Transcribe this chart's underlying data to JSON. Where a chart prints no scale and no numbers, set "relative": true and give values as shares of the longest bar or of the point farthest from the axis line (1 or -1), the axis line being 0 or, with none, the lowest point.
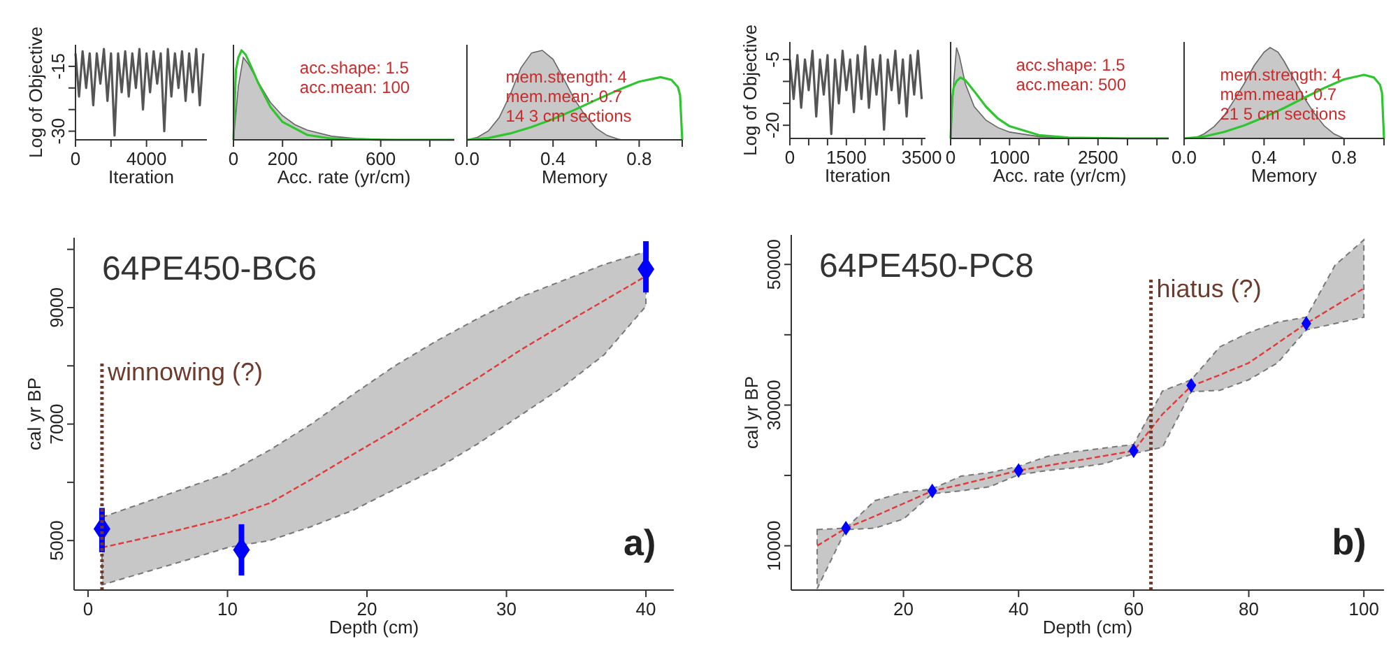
{
  "chart_data": [
    {
      "type": "line",
      "xlabel": "Iteration",
      "ylabel": "Log of Objective",
      "xlim": [
        0,
        7400
      ],
      "ylim": [
        -32,
        -10
      ],
      "xticks": [
        0,
        {
          "value": 2000,
          "label": null
        },
        4000,
        {
          "value": 6000,
          "label": null
        }
      ],
      "yticks": [
        -15,
        {
          "value": -20,
          "label": null
        },
        {
          "value": -25,
          "label": null
        },
        -30
      ],
      "series": [
        {
          "color": "#555555",
          "x": [
            0,
            200,
            400,
            600,
            800,
            1000,
            1200,
            1400,
            1600,
            1800,
            2000,
            2200,
            2400,
            2600,
            2800,
            3000,
            3200,
            3400,
            3600,
            3800,
            4000,
            4200,
            4400,
            4600,
            4800,
            5000,
            5200,
            5400,
            5600,
            5800,
            6000,
            6200,
            6400,
            6600,
            6800,
            7000,
            7200
          ],
          "values": [
            -12,
            -22,
            -11.5,
            -20,
            -12,
            -24,
            -12,
            -19,
            -11,
            -23,
            -12,
            -31,
            -12,
            -21,
            -11.5,
            -22,
            -12,
            -20,
            -11,
            -25,
            -12,
            -21,
            -11.5,
            -19,
            -12,
            -30,
            -11,
            -22,
            -12,
            -20,
            -11.5,
            -23,
            -12,
            -21,
            -11,
            -24,
            -12
          ]
        }
      ]
    },
    {
      "type": "area",
      "relative": true,
      "xlabel": "Acc. rate (yr/cm)",
      "xlim": [
        0,
        900
      ],
      "xticks": [
        0,
        200,
        {
          "value": 400,
          "label": null
        },
        600,
        {
          "value": 800,
          "label": null
        }
      ],
      "annotations": [
        "acc.shape:  1.5",
        "acc.mean:  100"
      ],
      "series": [
        {
          "color": "#c8c8c8",
          "x": [
            0,
            20,
            40,
            60,
            100,
            150,
            200,
            250,
            300,
            400,
            500,
            600,
            700
          ],
          "values": [
            0,
            0.6,
            0.92,
            0.85,
            0.65,
            0.42,
            0.27,
            0.17,
            0.11,
            0.04,
            0.015,
            0.005,
            0
          ]
        },
        {
          "type": "line",
          "color": "#2ec52e",
          "x": [
            0,
            10,
            20,
            33,
            50,
            75,
            100,
            150,
            200,
            300,
            400,
            600,
            900
          ],
          "values": [
            0,
            0.78,
            0.92,
            1,
            0.95,
            0.8,
            0.64,
            0.37,
            0.2,
            0.055,
            0.014,
            0.001,
            0
          ]
        }
      ]
    },
    {
      "type": "area",
      "relative": true,
      "xlabel": "Memory",
      "xlim": [
        0,
        1
      ],
      "xticks": [
        {
          "value": 0,
          "label": "0.0"
        },
        {
          "value": 0.2,
          "label": null
        },
        0.4,
        {
          "value": 0.6,
          "label": null
        },
        0.8,
        {
          "value": 1,
          "label": null
        }
      ],
      "annotations": [
        "mem.strength: 4",
        "mem.mean: 0.7",
        "14 3 cm sections"
      ],
      "series": [
        {
          "color": "#c8c8c8",
          "x": [
            0,
            0.05,
            0.1,
            0.15,
            0.2,
            0.25,
            0.3,
            0.35,
            0.4,
            0.45,
            0.5,
            0.55,
            0.6,
            0.65,
            0.7,
            0.72
          ],
          "values": [
            0,
            0.03,
            0.1,
            0.25,
            0.5,
            0.8,
            0.97,
            1,
            0.9,
            0.68,
            0.45,
            0.27,
            0.13,
            0.05,
            0.01,
            0
          ]
        },
        {
          "type": "line",
          "color": "#2ec52e",
          "x": [
            0,
            0.1,
            0.2,
            0.3,
            0.4,
            0.5,
            0.6,
            0.7,
            0.8,
            0.9,
            0.95,
            0.98,
            0.99,
            1
          ],
          "values": [
            0,
            0.021,
            0.071,
            0.143,
            0.232,
            0.335,
            0.446,
            0.554,
            0.65,
            0.7,
            0.67,
            0.59,
            0.5,
            0
          ]
        }
      ]
    },
    {
      "type": "line",
      "title": "64PE450-BC6",
      "xlabel": "Depth (cm)",
      "ylabel": "cal yr BP",
      "xlim": [
        -1,
        42
      ],
      "ylim": [
        4150,
        10200
      ],
      "xticks": [
        0,
        10,
        20,
        30,
        40
      ],
      "yticks": [
        5000,
        {
          "value": 6000,
          "label": null
        },
        7000,
        {
          "value": 8000,
          "label": null
        },
        9000,
        {
          "value": 10000,
          "label": null
        }
      ],
      "annotations": [
        "a)"
      ],
      "ref_lines": [
        {
          "axis": "x",
          "value": 1,
          "label": "winnowing (?)",
          "color": "#6e3a2c",
          "line_style": "dotted"
        }
      ],
      "series": [
        {
          "color": "#e03a3a",
          "line_style": "dashed",
          "x": [
            1,
            4,
            7,
            10,
            13,
            16,
            19,
            22,
            25,
            28,
            31,
            34,
            37,
            40
          ],
          "values": [
            4880,
            5040,
            5210,
            5390,
            5640,
            6050,
            6480,
            6900,
            7350,
            7800,
            8270,
            8700,
            9120,
            9540
          ],
          "lower": [
            4240,
            4450,
            4660,
            4880,
            5000,
            5240,
            5520,
            5880,
            6235,
            6670,
            7150,
            7630,
            8190,
            9025
          ],
          "upper": [
            5400,
            5650,
            5900,
            6155,
            6550,
            7000,
            7510,
            8000,
            8430,
            8820,
            9180,
            9460,
            9740,
            9960
          ]
        },
        {
          "type": "scatter",
          "color": "#0000ff",
          "marker": "diamond",
          "x": [
            1,
            11,
            40
          ],
          "values": [
            5200,
            4840,
            9660
          ],
          "errors": [
            [
              4800,
              5560
            ],
            [
              4400,
              5280
            ],
            [
              9260,
              10140
            ]
          ]
        }
      ]
    },
    {
      "type": "line",
      "xlabel": "Iteration",
      "ylabel": "Log of Objective",
      "xlim": [
        0,
        3600
      ],
      "ylim": [
        -23,
        -1
      ],
      "xticks": [
        0,
        {
          "value": 500,
          "label": null
        },
        {
          "value": 1000,
          "label": null
        },
        1500,
        {
          "value": 2000,
          "label": null
        },
        {
          "value": 2500,
          "label": null
        },
        {
          "value": 3000,
          "label": null
        },
        3500
      ],
      "yticks": [
        -5,
        {
          "value": -10,
          "label": null
        },
        {
          "value": -15,
          "label": null
        },
        -20
      ],
      "series": [
        {
          "color": "#555555",
          "x": [
            0,
            100,
            200,
            300,
            400,
            500,
            600,
            700,
            800,
            900,
            1000,
            1100,
            1200,
            1300,
            1400,
            1500,
            1600,
            1700,
            1800,
            1900,
            2000,
            2100,
            2200,
            2300,
            2400,
            2500,
            2600,
            2700,
            2800,
            2900,
            3000,
            3100,
            3200,
            3300,
            3400,
            3500
          ],
          "values": [
            -5,
            -14,
            -4,
            -16,
            -5,
            -12,
            -3,
            -18,
            -5,
            -13,
            -4,
            -22,
            -5,
            -15,
            -3,
            -12,
            -5,
            -17,
            -4,
            -14,
            -2,
            -16,
            -5,
            -13,
            -4,
            -21,
            -5,
            -12,
            -3,
            -15,
            -5,
            -18,
            -4,
            -13,
            -3,
            -14
          ]
        }
      ]
    },
    {
      "type": "area",
      "relative": true,
      "xlabel": "Acc. rate (yr/cm)",
      "xlim": [
        0,
        3700
      ],
      "xticks": [
        0,
        {
          "value": 500,
          "label": null
        },
        1000,
        {
          "value": 1500,
          "label": null
        },
        {
          "value": 2000,
          "label": null
        },
        2500,
        {
          "value": 3000,
          "label": null
        },
        {
          "value": 3500,
          "label": null
        }
      ],
      "annotations": [
        "acc.shape:  1.5",
        "acc.mean:  500"
      ],
      "series": [
        {
          "color": "#c8c8c8",
          "x": [
            0,
            50,
            100,
            150,
            250,
            400,
            600,
            800,
            1000,
            1500,
            2000,
            2500
          ],
          "values": [
            0,
            0.6,
            1,
            0.9,
            0.6,
            0.35,
            0.2,
            0.12,
            0.07,
            0.02,
            0.005,
            0
          ]
        },
        {
          "type": "line",
          "color": "#2ec52e",
          "x": [
            0,
            25,
            50,
            100,
            167,
            250,
            400,
            600,
            800,
            1000,
            1500,
            2000,
            3000,
            3700
          ],
          "values": [
            0,
            0.43,
            0.56,
            0.63,
            0.67,
            0.64,
            0.52,
            0.35,
            0.22,
            0.134,
            0.036,
            0.009,
            0,
            0
          ]
        }
      ]
    },
    {
      "type": "area",
      "relative": true,
      "xlabel": "Memory",
      "xlim": [
        0,
        1
      ],
      "xticks": [
        {
          "value": 0,
          "label": "0.0"
        },
        {
          "value": 0.2,
          "label": null
        },
        0.4,
        {
          "value": 0.6,
          "label": null
        },
        0.8,
        {
          "value": 1,
          "label": null
        }
      ],
      "annotations": [
        "mem.strength: 4",
        "mem.mean: 0.7",
        "21 5 cm sections"
      ],
      "series": [
        {
          "color": "#c8c8c8",
          "x": [
            0.05,
            0.1,
            0.15,
            0.2,
            0.25,
            0.3,
            0.35,
            0.4,
            0.43,
            0.47,
            0.5,
            0.55,
            0.6,
            0.65,
            0.7,
            0.75,
            0.8
          ],
          "values": [
            0,
            0.05,
            0.13,
            0.25,
            0.42,
            0.6,
            0.8,
            0.95,
            1,
            0.95,
            0.85,
            0.65,
            0.45,
            0.28,
            0.14,
            0.05,
            0
          ]
        },
        {
          "type": "line",
          "color": "#2ec52e",
          "x": [
            0,
            0.1,
            0.2,
            0.3,
            0.4,
            0.5,
            0.6,
            0.7,
            0.8,
            0.9,
            0.95,
            0.98,
            0.99,
            1
          ],
          "values": [
            0,
            0.021,
            0.071,
            0.143,
            0.232,
            0.335,
            0.446,
            0.554,
            0.65,
            0.7,
            0.67,
            0.59,
            0.5,
            0
          ]
        }
      ]
    },
    {
      "type": "line",
      "title": "64PE450-PC8",
      "xlabel": "Depth (cm)",
      "ylabel": "cal yr BP",
      "xlim": [
        0.5,
        103.5
      ],
      "ylim": [
        3700,
        54200
      ],
      "xticks": [
        20,
        40,
        60,
        80,
        100
      ],
      "yticks": [
        10000,
        {
          "value": 20000,
          "label": null
        },
        30000,
        {
          "value": 40000,
          "label": null
        },
        50000
      ],
      "annotations": [
        "b)"
      ],
      "ref_lines": [
        {
          "axis": "x",
          "value": 63,
          "label": "hiatus (?)",
          "color": "#6e3a2c",
          "line_style": "dotted"
        }
      ],
      "series": [
        {
          "color": "#e03a3a",
          "line_style": "dashed",
          "x": [
            5,
            10,
            15,
            20,
            25,
            30,
            35,
            40,
            45,
            50,
            55,
            60,
            65,
            70,
            75,
            80,
            85,
            90,
            95,
            100
          ],
          "values": [
            10000,
            12500,
            14200,
            16000,
            17800,
            18700,
            19700,
            20700,
            21400,
            22100,
            22800,
            23500,
            28700,
            32700,
            34300,
            36000,
            38800,
            41600,
            44100,
            46600
          ],
          "lower": [
            3900,
            12300,
            12500,
            13800,
            17400,
            17800,
            18400,
            20100,
            20700,
            21100,
            21700,
            23100,
            24000,
            31900,
            32100,
            33600,
            36000,
            40700,
            41600,
            42500
          ],
          "upper": [
            12300,
            12500,
            16400,
            17600,
            18100,
            19900,
            20400,
            21300,
            22700,
            23400,
            23900,
            24400,
            32000,
            33600,
            38300,
            40300,
            41800,
            42500,
            49900,
            53500
          ]
        },
        {
          "type": "scatter",
          "color": "#0000ff",
          "marker": "diamond",
          "x": [
            10,
            25,
            40,
            60,
            70,
            90
          ],
          "values": [
            12500,
            17800,
            20700,
            23500,
            32800,
            41600
          ],
          "errors": [
            [
              12200,
              12700
            ],
            [
              17500,
              18000
            ],
            [
              20500,
              21000
            ],
            [
              23200,
              23800
            ],
            [
              32000,
              33600
            ],
            [
              40900,
              42300
            ]
          ]
        }
      ]
    }
  ]
}
